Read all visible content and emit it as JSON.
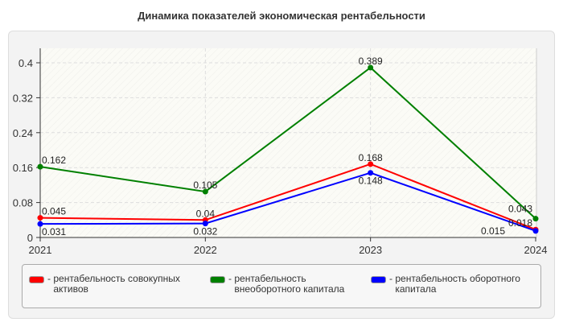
{
  "chart_data": {
    "type": "line",
    "title": "Динамика показателей экономическая рентабельности",
    "categories": [
      "2021",
      "2022",
      "2023",
      "2024"
    ],
    "ylim": [
      0,
      0.4
    ],
    "yticks": [
      "0",
      "0.08",
      "0.16",
      "0.24",
      "0.32",
      "0.4"
    ],
    "grid": true,
    "legend_position": "bottom",
    "series": [
      {
        "name": "рентабельность совокупных активов",
        "color": "#ff0000",
        "values": [
          0.045,
          0.04,
          0.168,
          0.018
        ]
      },
      {
        "name": "рентабельность внеоборотного капитала",
        "color": "#008000",
        "values": [
          0.162,
          0.105,
          0.389,
          0.043
        ]
      },
      {
        "name": "рентабельность оборотного капитала",
        "color": "#0000ff",
        "values": [
          0.031,
          0.032,
          0.148,
          0.015
        ]
      }
    ]
  },
  "legend": {
    "prefix": "-"
  }
}
